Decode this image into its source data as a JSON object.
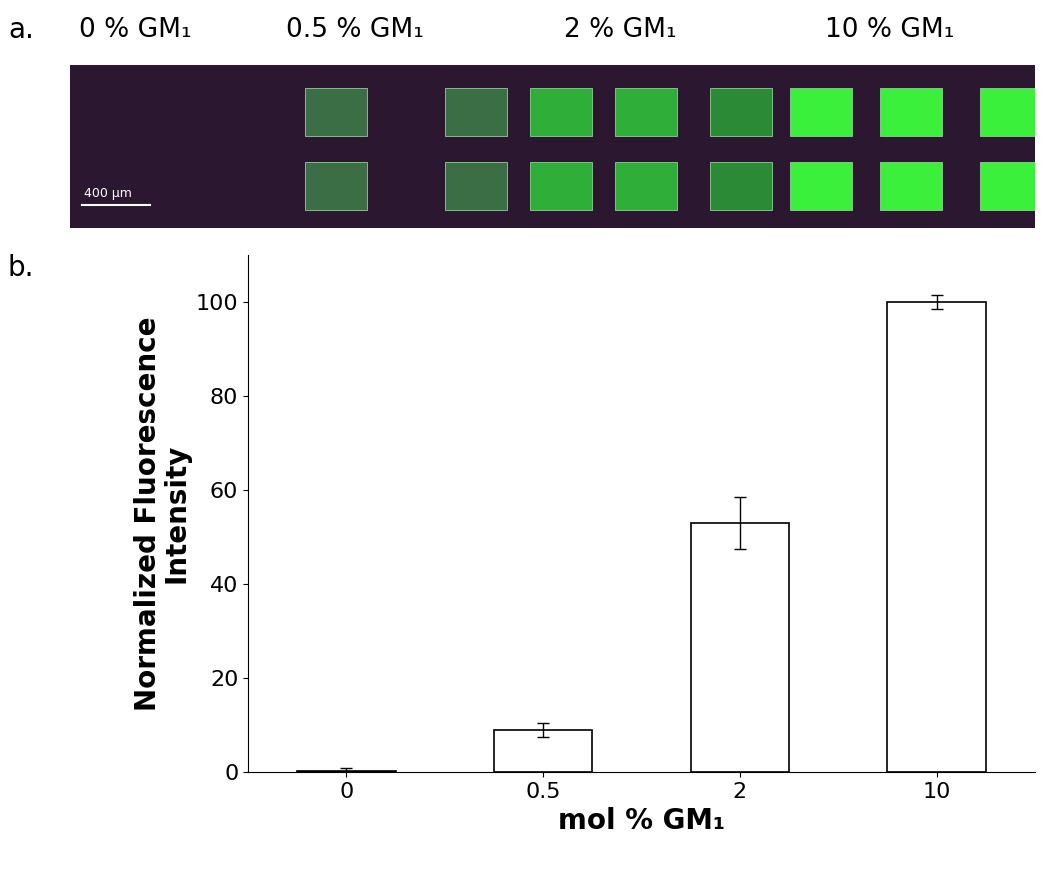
{
  "panel_a": {
    "label": "a.",
    "columns": [
      "0 % GM₁",
      "0.5 % GM₁",
      "2 % GM₁",
      "10 % GM₁"
    ],
    "scale_bar": "400 µm"
  },
  "chart_data": {
    "label": "b.",
    "type": "bar",
    "categories": [
      "0",
      "0.5",
      "2",
      "10"
    ],
    "values": [
      0.3,
      9,
      53,
      100
    ],
    "errors": [
      0.5,
      1.5,
      5.5,
      1.5
    ],
    "color": "#ffffff",
    "xlabel": "mol % GM₁",
    "ylabel": "Normalized Fluorescence\nIntensity",
    "ylim": [
      0,
      110
    ],
    "yticks": [
      0,
      20,
      40,
      60,
      80,
      100
    ]
  }
}
